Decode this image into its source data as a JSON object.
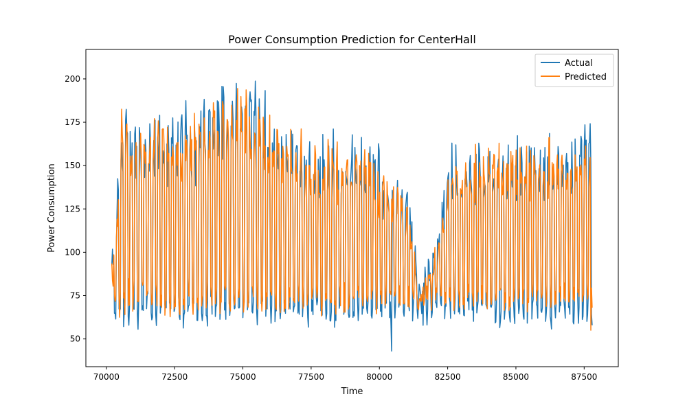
{
  "chart_data": {
    "type": "line",
    "title": "Power Consumption Prediction for CenterHall",
    "xlabel": "Time",
    "ylabel": "Power Consumption",
    "xlim": [
      69250,
      88750
    ],
    "ylim": [
      34,
      217
    ],
    "x_ticks": [
      70000,
      72500,
      75000,
      77500,
      80000,
      82500,
      85000,
      87500
    ],
    "y_ticks": [
      50,
      75,
      100,
      125,
      150,
      175,
      200
    ],
    "x_tick_labels": [
      "70000",
      "72500",
      "75000",
      "77500",
      "80000",
      "82500",
      "85000",
      "87500"
    ],
    "y_tick_labels": [
      "50",
      "75",
      "100",
      "125",
      "150",
      "175",
      "200"
    ],
    "x_range": [
      70200,
      87800
    ],
    "legend_position": "top-right",
    "grid": false,
    "series": [
      {
        "name": "Actual",
        "color": "#1f77b4",
        "daily_peaks": [
          {
            "x": 70250,
            "y": 105
          },
          {
            "x": 70650,
            "y": 202
          },
          {
            "x": 71000,
            "y": 185
          },
          {
            "x": 71450,
            "y": 179
          },
          {
            "x": 71900,
            "y": 184
          },
          {
            "x": 72250,
            "y": 178
          },
          {
            "x": 72750,
            "y": 196
          },
          {
            "x": 73250,
            "y": 185
          },
          {
            "x": 73700,
            "y": 194
          },
          {
            "x": 74100,
            "y": 205
          },
          {
            "x": 74450,
            "y": 203
          },
          {
            "x": 74750,
            "y": 210
          },
          {
            "x": 75250,
            "y": 208
          },
          {
            "x": 75550,
            "y": 206
          },
          {
            "x": 76050,
            "y": 185
          },
          {
            "x": 76550,
            "y": 180
          },
          {
            "x": 76900,
            "y": 176
          },
          {
            "x": 77300,
            "y": 174
          },
          {
            "x": 77800,
            "y": 174
          },
          {
            "x": 78250,
            "y": 176
          },
          {
            "x": 78750,
            "y": 170
          },
          {
            "x": 79150,
            "y": 170
          },
          {
            "x": 79700,
            "y": 172
          },
          {
            "x": 80000,
            "y": 164
          },
          {
            "x": 80600,
            "y": 153
          },
          {
            "x": 81100,
            "y": 139
          },
          {
            "x": 81500,
            "y": 86
          },
          {
            "x": 82200,
            "y": 125
          },
          {
            "x": 82650,
            "y": 170
          },
          {
            "x": 83100,
            "y": 165
          },
          {
            "x": 83500,
            "y": 170
          },
          {
            "x": 84000,
            "y": 174
          },
          {
            "x": 84400,
            "y": 167
          },
          {
            "x": 84850,
            "y": 173
          },
          {
            "x": 85300,
            "y": 171
          },
          {
            "x": 85750,
            "y": 166
          },
          {
            "x": 86150,
            "y": 174
          },
          {
            "x": 86550,
            "y": 170
          },
          {
            "x": 87050,
            "y": 171
          },
          {
            "x": 87450,
            "y": 186
          }
        ],
        "minimum": {
          "x": 80450,
          "y": 43
        }
      },
      {
        "name": "Predicted",
        "color": "#ff7f0e",
        "daily_peaks": [
          {
            "x": 70250,
            "y": 100
          },
          {
            "x": 70600,
            "y": 198
          },
          {
            "x": 71050,
            "y": 177
          },
          {
            "x": 71400,
            "y": 176
          },
          {
            "x": 71900,
            "y": 185
          },
          {
            "x": 72300,
            "y": 172
          },
          {
            "x": 72800,
            "y": 190
          },
          {
            "x": 73250,
            "y": 185
          },
          {
            "x": 73700,
            "y": 194
          },
          {
            "x": 74100,
            "y": 200
          },
          {
            "x": 74550,
            "y": 196
          },
          {
            "x": 74800,
            "y": 200
          },
          {
            "x": 75300,
            "y": 198
          },
          {
            "x": 75600,
            "y": 200
          },
          {
            "x": 76000,
            "y": 184
          },
          {
            "x": 76500,
            "y": 178
          },
          {
            "x": 76950,
            "y": 178
          },
          {
            "x": 77400,
            "y": 173
          },
          {
            "x": 77750,
            "y": 170
          },
          {
            "x": 78200,
            "y": 173
          },
          {
            "x": 78700,
            "y": 166
          },
          {
            "x": 79100,
            "y": 166
          },
          {
            "x": 79650,
            "y": 166
          },
          {
            "x": 80100,
            "y": 156
          },
          {
            "x": 80550,
            "y": 147
          },
          {
            "x": 81050,
            "y": 130
          },
          {
            "x": 81500,
            "y": 82
          },
          {
            "x": 82200,
            "y": 117
          },
          {
            "x": 82650,
            "y": 166
          },
          {
            "x": 83050,
            "y": 162
          },
          {
            "x": 83600,
            "y": 170
          },
          {
            "x": 84000,
            "y": 172
          },
          {
            "x": 84500,
            "y": 170
          },
          {
            "x": 84900,
            "y": 168
          },
          {
            "x": 85350,
            "y": 168
          },
          {
            "x": 85800,
            "y": 165
          },
          {
            "x": 86200,
            "y": 172
          },
          {
            "x": 86600,
            "y": 167
          },
          {
            "x": 87050,
            "y": 171
          },
          {
            "x": 87500,
            "y": 173
          }
        ],
        "minimum": {
          "x": 87750,
          "y": 55
        }
      }
    ]
  }
}
